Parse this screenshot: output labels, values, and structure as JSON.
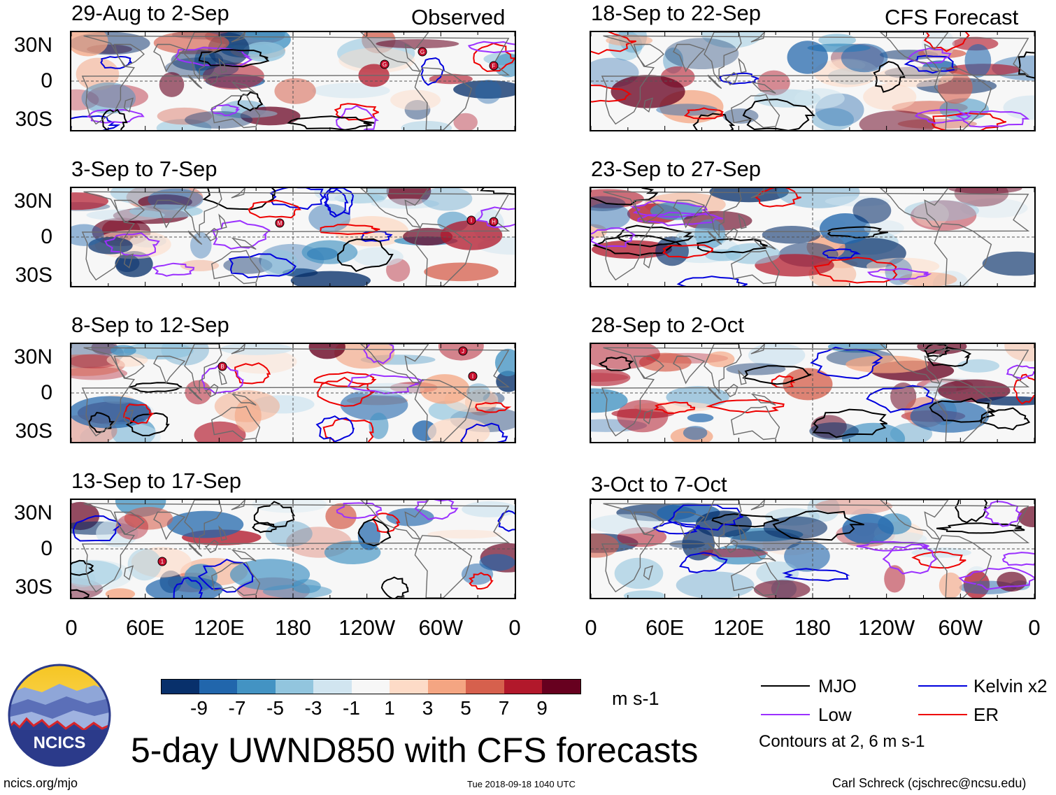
{
  "header": {
    "observed_label": "Observed",
    "forecast_label": "CFS Forecast"
  },
  "panels": {
    "left": [
      {
        "title": "29-Aug to 2-Sep",
        "storms": [
          "G",
          "G",
          "F"
        ]
      },
      {
        "title": "3-Sep to 7-Sep",
        "storms": [
          "M",
          "I",
          "H"
        ]
      },
      {
        "title": "8-Sep to 12-Sep",
        "storms": [
          "B",
          "J",
          "I"
        ]
      },
      {
        "title": "13-Sep to 17-Sep",
        "storms": [
          "1"
        ]
      }
    ],
    "right": [
      {
        "title": "18-Sep to 22-Sep"
      },
      {
        "title": "23-Sep to 27-Sep"
      },
      {
        "title": "28-Sep to 2-Oct"
      },
      {
        "title": "3-Oct to 7-Oct"
      }
    ]
  },
  "axes": {
    "lat_labels": [
      "30N",
      "0",
      "30S"
    ],
    "lon_labels": [
      "0",
      "60E",
      "120E",
      "180",
      "120W",
      "60W",
      "0"
    ]
  },
  "colorbar": {
    "colors": [
      "#08306b",
      "#2166ac",
      "#4393c3",
      "#92c5de",
      "#d1e5f0",
      "#f7f7f7",
      "#fddbc7",
      "#f4a582",
      "#d6604d",
      "#b2182b",
      "#67001f"
    ],
    "labels": [
      "-9",
      "-7",
      "-5",
      "-3",
      "-1",
      "1",
      "3",
      "5",
      "7",
      "9"
    ],
    "units": "m s-1"
  },
  "legend": {
    "items": [
      {
        "label": "MJO",
        "color": "#000000"
      },
      {
        "label": "Kelvin x2",
        "color": "#0000dd"
      },
      {
        "label": "Low",
        "color": "#9b30ff"
      },
      {
        "label": "ER",
        "color": "#ee0000"
      }
    ],
    "note": "Contours at 2, 6 m s-1"
  },
  "logo": {
    "text": "NCICS"
  },
  "title": "5-day UWND850 with CFS forecasts",
  "footer": {
    "url": "ncics.org/mjo",
    "timestamp": "Tue 2018-09-18 1040 UTC",
    "author": "Carl Schreck (cjschrec@ncsu.edu)"
  }
}
